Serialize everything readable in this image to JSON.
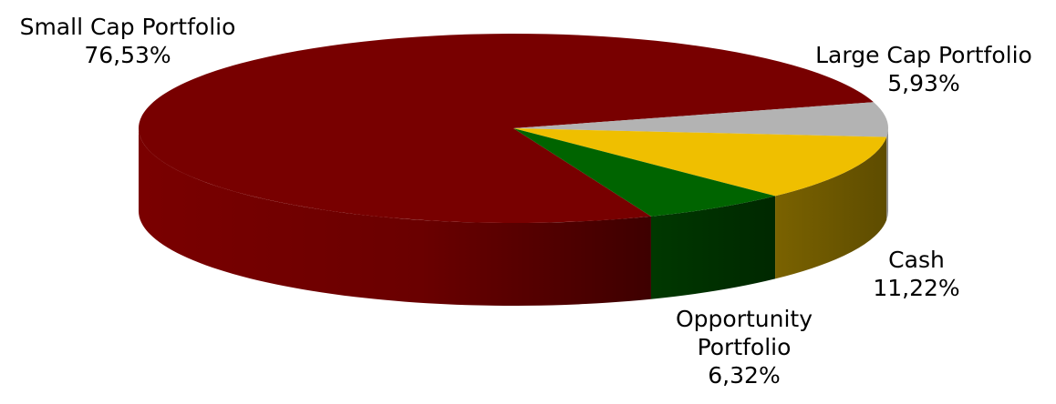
{
  "chart_data": {
    "type": "pie",
    "style": "3d",
    "slices": [
      {
        "label": "Small Cap Portfolio",
        "value": 76.53,
        "display": "76,53%",
        "color": "#780000"
      },
      {
        "label": "Large Cap Portfolio",
        "value": 5.93,
        "display": "5,93%",
        "color": "#b3b3b3"
      },
      {
        "label": "Cash",
        "value": 11.22,
        "display": "11,22%",
        "color": "#efbf00"
      },
      {
        "label": "Opportunity Portfolio",
        "display": "6,32%",
        "value": 6.32,
        "color": "#006400"
      }
    ],
    "opportunity_label_lines": [
      "Opportunity",
      "Portfolio"
    ]
  }
}
